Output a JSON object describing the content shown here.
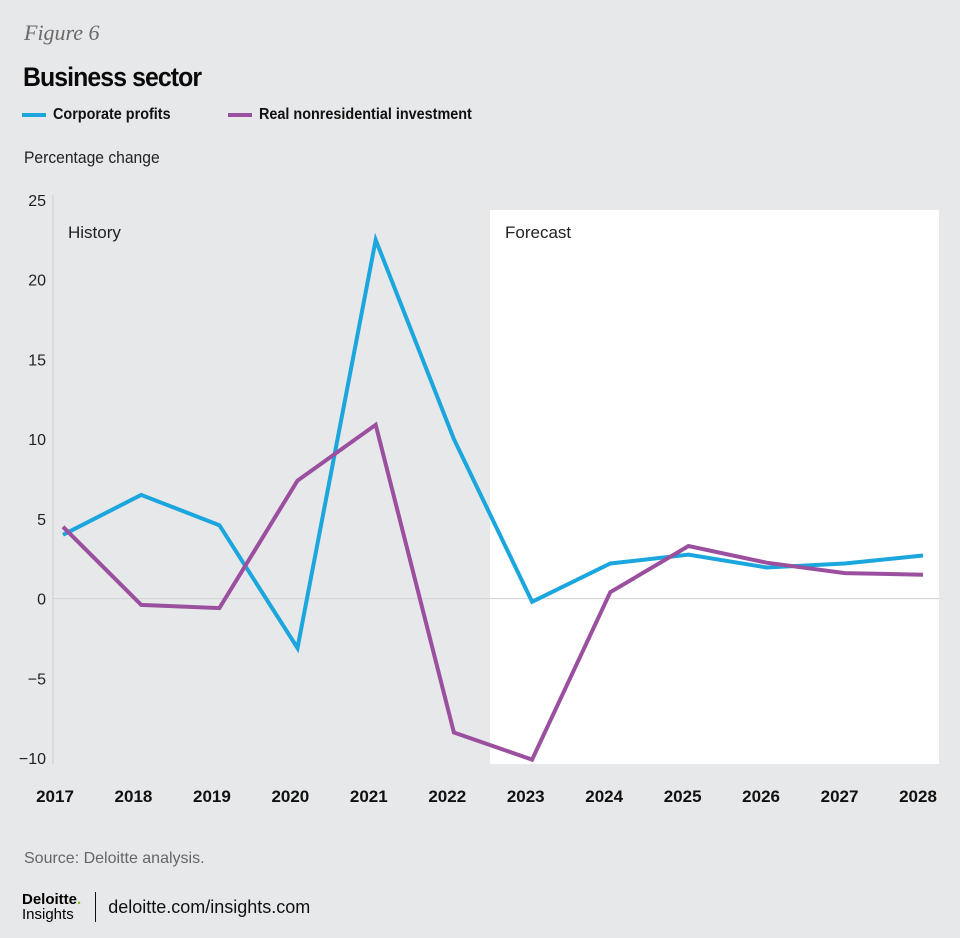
{
  "figure_label": "Figure 6",
  "title": "Business sector",
  "legend": [
    {
      "label": "Corporate profits",
      "color": "#1ba6de"
    },
    {
      "label": "Real nonresidential investment",
      "color": "#9b4f9f"
    }
  ],
  "y_unit_label": "Percentage change",
  "source": "Source: Deloitte analysis.",
  "footer": {
    "logo_top": "Deloitte",
    "logo_dot": ".",
    "logo_bottom": "Insights",
    "link": "deloitte.com/insights.com"
  },
  "chart_data": {
    "type": "line",
    "title": "Business sector",
    "xlabel": "",
    "ylabel": "Percentage change",
    "x": [
      "2017",
      "2018",
      "2019",
      "2020",
      "2021",
      "2022",
      "2023",
      "2024",
      "2025",
      "2026",
      "2027",
      "2028"
    ],
    "ylim": [
      -10,
      25
    ],
    "yticks": [
      25,
      20,
      15,
      10,
      5,
      0,
      -5,
      -10
    ],
    "ytick_labels": [
      "25",
      "20",
      "15",
      "10",
      "5",
      "0",
      "−5",
      "−10"
    ],
    "grid": false,
    "zero_line": true,
    "legend_position": "top-left",
    "regions": [
      {
        "label": "History",
        "from": "2017",
        "to": "2022",
        "shaded": false
      },
      {
        "label": "Forecast",
        "from": "2022.5",
        "to": "2028",
        "shaded": true,
        "fill": "#ffffff"
      }
    ],
    "series": [
      {
        "name": "Corporate profits",
        "color": "#1ba6de",
        "values": [
          4.0,
          6.5,
          4.6,
          -3.1,
          22.5,
          10.0,
          -0.2,
          2.2,
          2.75,
          1.95,
          2.2,
          2.7
        ]
      },
      {
        "name": "Real nonresidential investment",
        "color": "#9b4f9f",
        "values": [
          4.5,
          -0.4,
          -0.6,
          7.4,
          10.9,
          -8.4,
          -10.1,
          0.4,
          3.3,
          2.25,
          1.6,
          1.5
        ]
      }
    ]
  }
}
